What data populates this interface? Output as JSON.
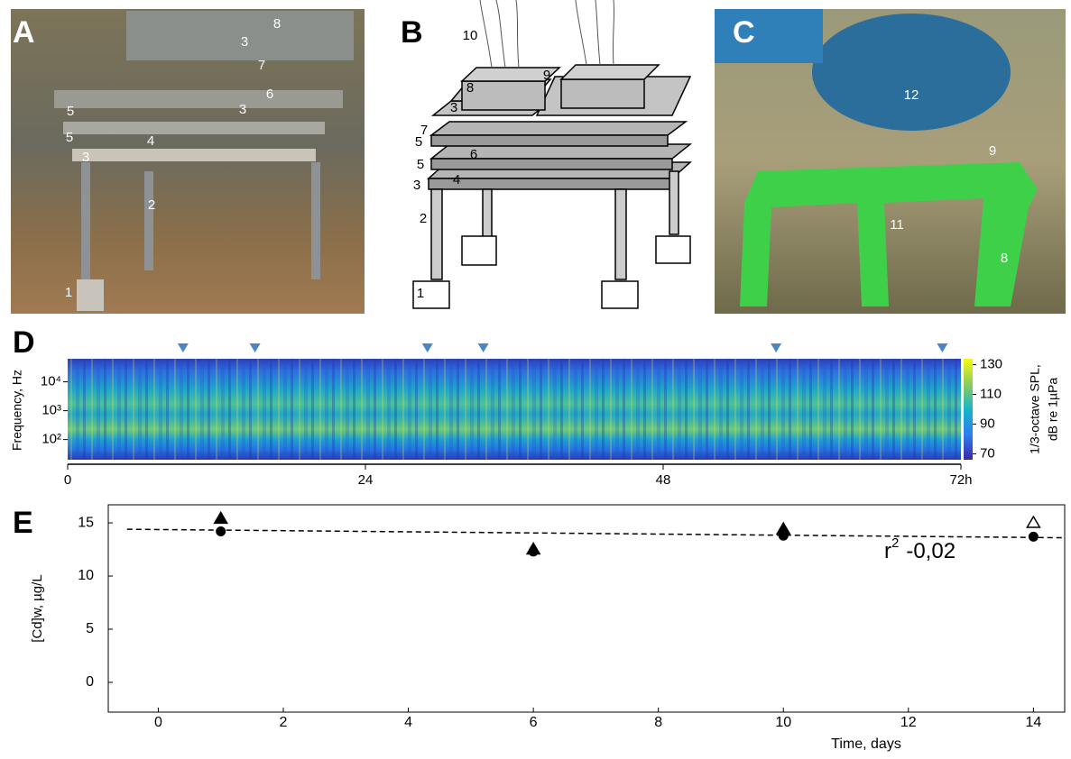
{
  "panels": {
    "A": {
      "letter": "A",
      "labels": [
        "8",
        "3",
        "7",
        "6",
        "5",
        "3",
        "5",
        "4",
        "3",
        "2",
        "1"
      ]
    },
    "B": {
      "letter": "B",
      "labels": [
        "10",
        "9",
        "8",
        "3",
        "7",
        "5",
        "6",
        "5",
        "4",
        "3",
        "2",
        "1"
      ]
    },
    "C": {
      "letter": "C",
      "labels": [
        "12",
        "9",
        "11",
        "8"
      ]
    }
  },
  "chart_data": [
    {
      "type": "heatmap",
      "letter": "D",
      "ylabel": "Frequency, Hz",
      "xlim": [
        0,
        72
      ],
      "xticks": [
        0,
        24,
        48,
        {
          "value": 72,
          "label": "72h"
        }
      ],
      "log_y": true,
      "ylim": [
        20,
        63000
      ],
      "yticks": [
        {
          "value": 10000,
          "label": "10⁴"
        },
        {
          "value": 1000,
          "label": "10³"
        },
        {
          "value": 100,
          "label": "10²"
        }
      ],
      "colorbar": {
        "label": [
          "1/3-octave SPL,",
          "dB re 1µPa"
        ],
        "lim": [
          66,
          134
        ],
        "ticks": [
          70,
          90,
          110,
          130
        ]
      },
      "markers": [
        9.3,
        15.1,
        29.0,
        33.5,
        57.1,
        70.5
      ],
      "marker_color": "#4a86c5"
    },
    {
      "type": "scatter",
      "letter": "E",
      "xlabel": "Time, days",
      "ylabel": "[Cd]w, µg/L",
      "xlim": [
        -0.8,
        14.5
      ],
      "ylim": [
        -2.8,
        16.7
      ],
      "xticks": [
        0,
        2,
        4,
        6,
        8,
        10,
        12,
        14
      ],
      "yticks": [
        0,
        5,
        10,
        15
      ],
      "series": [
        {
          "marker": "circle",
          "color": "#000000",
          "x": [
            1,
            6,
            10,
            14
          ],
          "values": [
            14.2,
            12.3,
            13.8,
            13.7
          ],
          "filled": [
            true,
            true,
            true,
            true
          ]
        },
        {
          "marker": "triangle",
          "color": "#000000",
          "x": [
            1,
            6,
            10,
            14
          ],
          "values": [
            15.4,
            12.5,
            14.4,
            15.0
          ],
          "filled": [
            true,
            true,
            true,
            false
          ]
        }
      ],
      "trend": {
        "x": [
          -0.5,
          14.5
        ],
        "values": [
          14.4,
          13.6
        ]
      },
      "annotation": {
        "base": "r",
        "sup": "2",
        "text": "-0,02"
      }
    }
  ]
}
